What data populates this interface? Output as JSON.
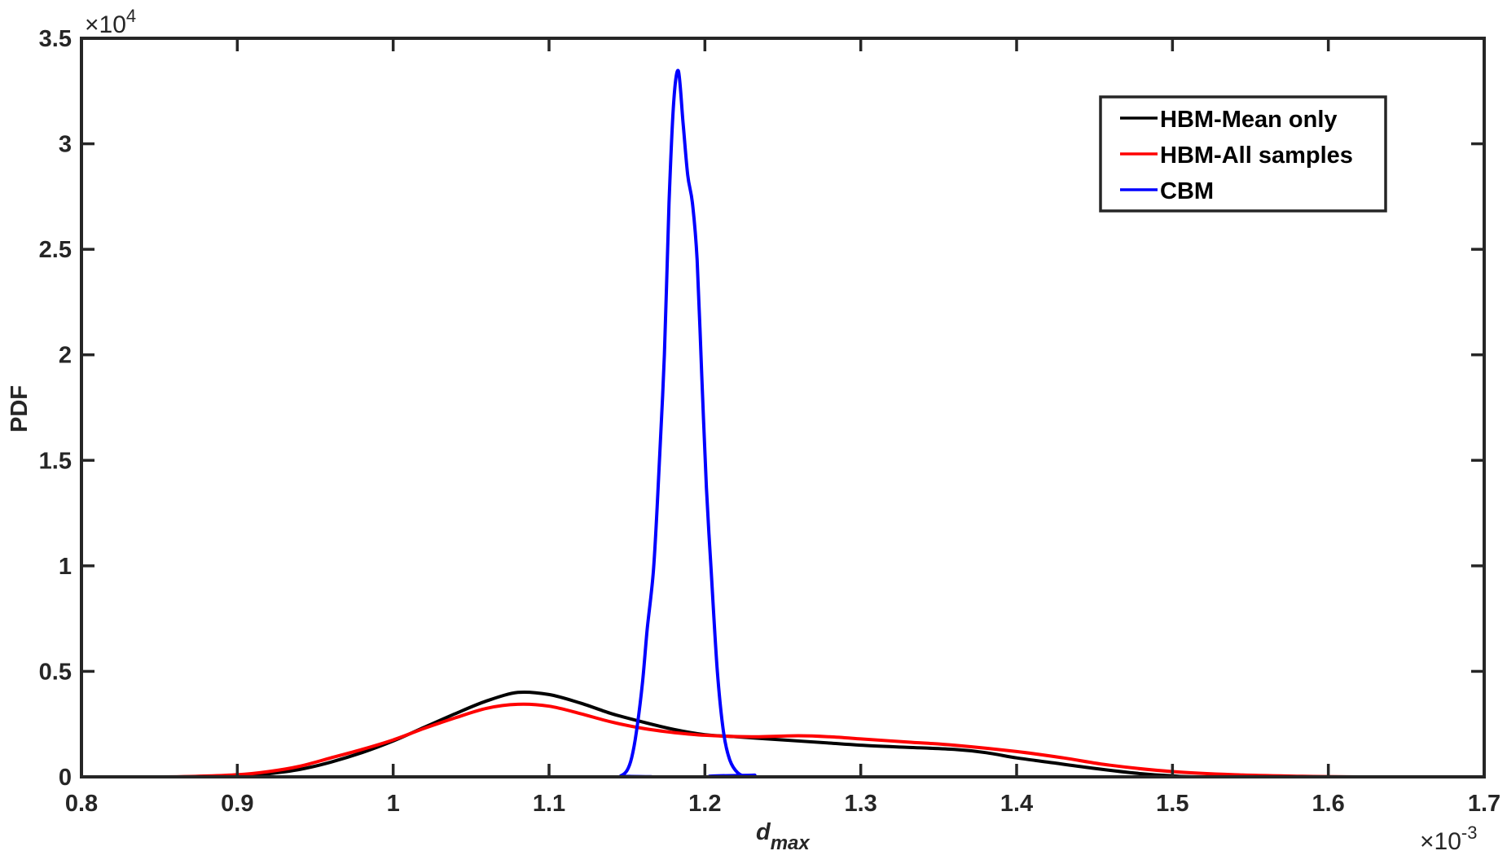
{
  "chart_data": {
    "type": "line",
    "title": "",
    "xlabel": "d_max",
    "xlabel_main": "d",
    "xlabel_sub": "max",
    "ylabel": "PDF",
    "xlim": [
      0.8,
      1.7
    ],
    "ylim": [
      0,
      3.5
    ],
    "x_multiplier": "×10",
    "x_multiplier_exp": "-3",
    "y_multiplier": "×10",
    "y_multiplier_exp": "4",
    "x_ticks": [
      0.8,
      0.9,
      1,
      1.1,
      1.2,
      1.3,
      1.4,
      1.5,
      1.6,
      1.7
    ],
    "x_tick_labels": [
      "0.8",
      "0.9",
      "1",
      "1.1",
      "1.2",
      "1.3",
      "1.4",
      "1.5",
      "1.6",
      "1.7"
    ],
    "y_ticks": [
      0,
      0.5,
      1,
      1.5,
      2,
      2.5,
      3,
      3.5
    ],
    "y_tick_labels": [
      "0",
      "0.5",
      "1",
      "1.5",
      "2",
      "2.5",
      "3",
      "3.5"
    ],
    "grid": false,
    "legend_position": "upper right",
    "series": [
      {
        "name": "HBM-Mean only",
        "color": "#000000",
        "x": [
          0.8,
          0.88,
          0.9,
          0.92,
          0.94,
          0.96,
          0.98,
          1.0,
          1.02,
          1.04,
          1.06,
          1.08,
          1.1,
          1.12,
          1.14,
          1.16,
          1.18,
          1.2,
          1.22,
          1.25,
          1.28,
          1.3,
          1.33,
          1.36,
          1.38,
          1.4,
          1.42,
          1.45,
          1.48,
          1.5,
          1.53,
          1.7
        ],
        "y": [
          0,
          0,
          0.003,
          0.015,
          0.035,
          0.07,
          0.115,
          0.17,
          0.235,
          0.3,
          0.36,
          0.4,
          0.39,
          0.35,
          0.3,
          0.26,
          0.225,
          0.2,
          0.19,
          0.175,
          0.16,
          0.15,
          0.14,
          0.13,
          0.115,
          0.09,
          0.07,
          0.04,
          0.015,
          0.005,
          0,
          0
        ]
      },
      {
        "name": "HBM-All samples",
        "color": "#ff0000",
        "x": [
          0.8,
          0.85,
          0.87,
          0.9,
          0.92,
          0.94,
          0.96,
          0.98,
          1.0,
          1.02,
          1.04,
          1.06,
          1.08,
          1.1,
          1.12,
          1.14,
          1.16,
          1.18,
          1.2,
          1.23,
          1.26,
          1.28,
          1.3,
          1.33,
          1.36,
          1.4,
          1.43,
          1.46,
          1.5,
          1.54,
          1.58,
          1.62,
          1.7
        ],
        "y": [
          0,
          0,
          0.002,
          0.01,
          0.025,
          0.05,
          0.09,
          0.13,
          0.175,
          0.23,
          0.28,
          0.325,
          0.344,
          0.335,
          0.3,
          0.26,
          0.23,
          0.21,
          0.197,
          0.19,
          0.195,
          0.19,
          0.18,
          0.165,
          0.15,
          0.12,
          0.09,
          0.055,
          0.025,
          0.01,
          0.003,
          0,
          0
        ]
      },
      {
        "name": "CBM",
        "color": "#0000ff",
        "x": [
          0.8,
          1.14,
          1.146,
          1.15,
          1.153,
          1.156,
          1.16,
          1.163,
          1.167,
          1.17,
          1.174,
          1.177,
          1.18,
          1.183,
          1.186,
          1.189,
          1.192,
          1.195,
          1.198,
          1.201,
          1.204,
          1.208,
          1.212,
          1.216,
          1.221,
          1.227,
          1.232,
          1.237,
          1.7
        ],
        "y": [
          0,
          0,
          0.005,
          0.03,
          0.09,
          0.21,
          0.45,
          0.7,
          0.98,
          1.37,
          2.0,
          2.72,
          3.2,
          3.345,
          3.1,
          2.85,
          2.72,
          2.45,
          1.9,
          1.37,
          0.98,
          0.5,
          0.21,
          0.08,
          0.02,
          0,
          0.008,
          0,
          0
        ]
      }
    ]
  }
}
